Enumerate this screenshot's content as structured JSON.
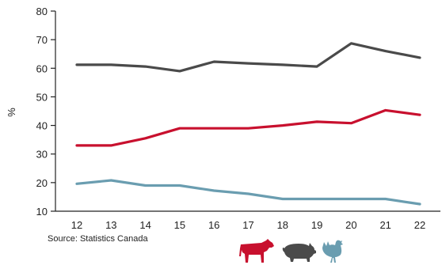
{
  "chart_data": {
    "type": "line",
    "x": [
      "12",
      "13",
      "14",
      "15",
      "16",
      "17",
      "18",
      "19",
      "20",
      "21",
      "22"
    ],
    "ylabel": "%",
    "xlabel": "",
    "ylim": [
      10,
      80
    ],
    "yticks": [
      10,
      20,
      30,
      40,
      50,
      60,
      70,
      80
    ],
    "grid": false,
    "series": [
      {
        "icon": "cow-icon",
        "color": "#c8102e",
        "values": [
          33,
          33,
          35.5,
          39,
          39,
          39,
          40,
          41.3,
          40.8,
          45.3,
          43.7
        ]
      },
      {
        "icon": "pig-icon",
        "color": "#4a4a4a",
        "values": [
          61.2,
          61.2,
          60.6,
          59,
          62.3,
          61.7,
          61.2,
          60.6,
          68.7,
          66,
          63.7
        ]
      },
      {
        "icon": "chicken-icon",
        "color": "#6a9db0",
        "values": [
          19.6,
          20.8,
          19,
          19,
          17.2,
          16.1,
          14.3,
          14.3,
          14.3,
          14.3,
          12.5
        ]
      }
    ]
  },
  "source": "Source: Statistics Canada"
}
